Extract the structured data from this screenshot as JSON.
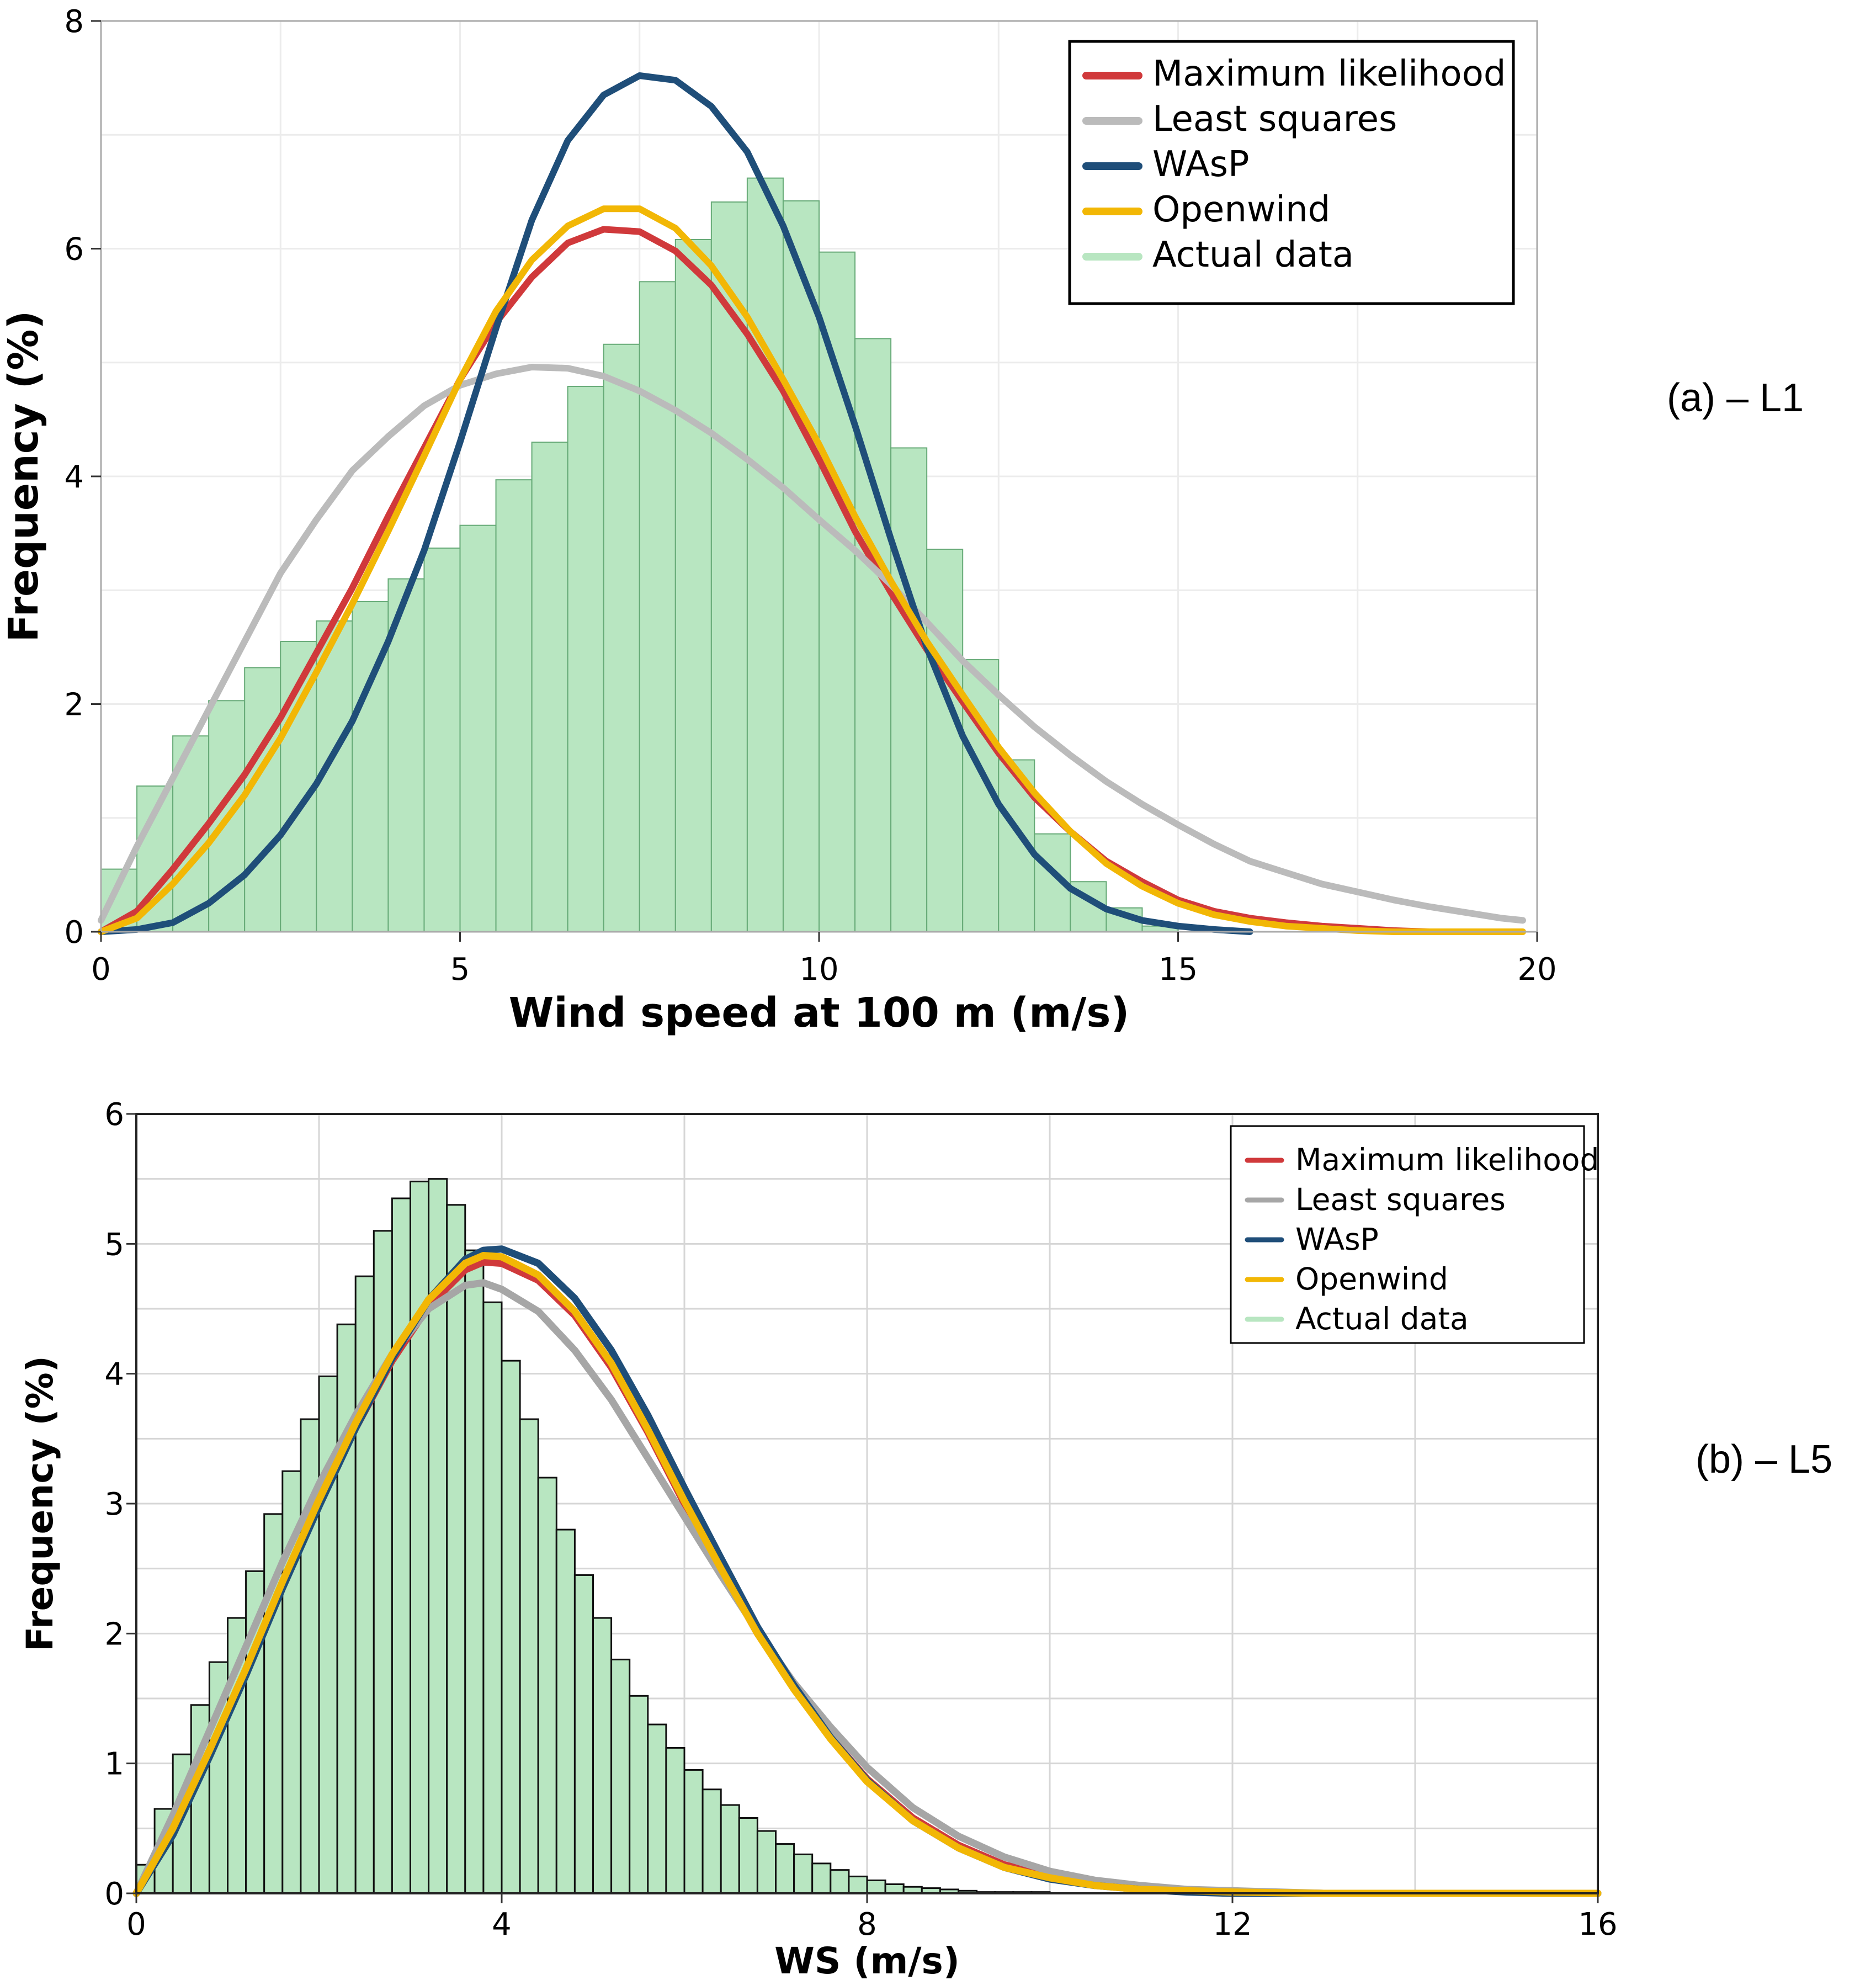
{
  "panels": [
    {
      "tag": "(a)  – L1",
      "chart_data": {
        "type": "bar",
        "xlabel": "Wind speed at 100 m (m/s)",
        "ylabel": "Frequency (%)",
        "xlim": [
          0,
          20
        ],
        "ylim": [
          0,
          8
        ],
        "xticks": [
          0,
          5,
          10,
          15,
          20
        ],
        "yticks": [
          0,
          2,
          4,
          6,
          8
        ],
        "grid": true,
        "legend_position": "top-right",
        "bin_width": 0.5,
        "actual_data": [
          0.55,
          1.28,
          1.72,
          2.03,
          2.32,
          2.55,
          2.73,
          2.9,
          3.1,
          3.37,
          3.57,
          3.97,
          4.3,
          4.79,
          5.16,
          5.71,
          6.08,
          6.41,
          6.62,
          6.42,
          5.97,
          5.21,
          4.25,
          3.36,
          2.39,
          1.51,
          0.86,
          0.44,
          0.21,
          0.05
        ],
        "series": [
          {
            "name": "Maximum likelihood",
            "color": "#d0393b",
            "x": [
              0,
              0.5,
              1,
              1.5,
              2,
              2.5,
              3,
              3.5,
              4,
              4.5,
              5,
              5.5,
              6,
              6.5,
              7,
              7.5,
              8,
              8.5,
              9,
              9.5,
              10,
              10.5,
              11,
              11.5,
              12,
              12.5,
              13,
              13.5,
              14,
              14.5,
              15,
              15.5,
              16,
              16.5,
              17,
              17.5,
              18,
              18.5
            ],
            "y": [
              0,
              0.18,
              0.55,
              0.95,
              1.38,
              1.88,
              2.45,
              3.02,
              3.65,
              4.25,
              4.85,
              5.35,
              5.75,
              6.05,
              6.17,
              6.15,
              5.98,
              5.68,
              5.25,
              4.75,
              4.15,
              3.52,
              2.98,
              2.48,
              2.02,
              1.57,
              1.18,
              0.88,
              0.62,
              0.44,
              0.28,
              0.18,
              0.12,
              0.08,
              0.05,
              0.03,
              0.01,
              0
            ]
          },
          {
            "name": "Least squares",
            "color": "#bbbbbb",
            "x": [
              0,
              0.5,
              1,
              1.5,
              2,
              2.5,
              3,
              3.5,
              4,
              4.5,
              5,
              5.5,
              6,
              6.5,
              7,
              7.5,
              8,
              8.5,
              9,
              9.5,
              10,
              10.5,
              11,
              11.5,
              12,
              12.5,
              13,
              13.5,
              14,
              14.5,
              15,
              15.5,
              16,
              16.5,
              17,
              17.5,
              18,
              18.5,
              19,
              19.5,
              19.8
            ],
            "y": [
              0.1,
              0.75,
              1.35,
              1.95,
              2.55,
              3.15,
              3.62,
              4.05,
              4.35,
              4.62,
              4.8,
              4.9,
              4.96,
              4.95,
              4.88,
              4.75,
              4.58,
              4.38,
              4.15,
              3.9,
              3.62,
              3.35,
              3.05,
              2.72,
              2.38,
              2.08,
              1.8,
              1.55,
              1.32,
              1.12,
              0.94,
              0.77,
              0.62,
              0.52,
              0.42,
              0.35,
              0.28,
              0.22,
              0.17,
              0.12,
              0.1
            ]
          },
          {
            "name": "WAsP",
            "color": "#1f4e79",
            "x": [
              0,
              0.5,
              1,
              1.5,
              2,
              2.5,
              3,
              3.5,
              4,
              4.5,
              5,
              5.5,
              6,
              6.5,
              7,
              7.5,
              8,
              8.5,
              9,
              9.5,
              10,
              10.5,
              11,
              11.5,
              12,
              12.5,
              13,
              13.5,
              14,
              14.5,
              15,
              15.5,
              16
            ],
            "y": [
              0,
              0.02,
              0.08,
              0.25,
              0.5,
              0.85,
              1.3,
              1.85,
              2.55,
              3.35,
              4.3,
              5.3,
              6.25,
              6.95,
              7.35,
              7.52,
              7.48,
              7.25,
              6.85,
              6.2,
              5.4,
              4.45,
              3.45,
              2.5,
              1.72,
              1.12,
              0.68,
              0.38,
              0.2,
              0.1,
              0.05,
              0.02,
              0
            ]
          },
          {
            "name": "Openwind",
            "color": "#f2b705",
            "x": [
              0,
              0.5,
              1,
              1.5,
              2,
              2.5,
              3,
              3.5,
              4,
              4.5,
              5,
              5.5,
              6,
              6.5,
              7,
              7.5,
              8,
              8.5,
              9,
              9.5,
              10,
              10.5,
              11,
              11.5,
              12,
              12.5,
              13,
              13.5,
              14,
              14.5,
              15,
              15.5,
              16,
              16.5,
              17,
              17.5,
              18,
              18.5,
              19,
              19.5,
              19.8
            ],
            "y": [
              0,
              0.12,
              0.42,
              0.78,
              1.2,
              1.7,
              2.28,
              2.88,
              3.52,
              4.18,
              4.85,
              5.45,
              5.9,
              6.2,
              6.35,
              6.35,
              6.18,
              5.85,
              5.4,
              4.85,
              4.28,
              3.65,
              3.08,
              2.55,
              2.08,
              1.62,
              1.22,
              0.88,
              0.6,
              0.4,
              0.25,
              0.15,
              0.09,
              0.05,
              0.03,
              0.01,
              0,
              0,
              0,
              0,
              0
            ]
          }
        ],
        "legend": [
          "Maximum likelihood",
          "Least squares",
          "WAsP",
          "Openwind",
          "Actual data"
        ],
        "bar_color": "#b8e6c1"
      }
    },
    {
      "tag": "(b)  – L5",
      "chart_data": {
        "type": "bar",
        "xlabel": "WS (m/s)",
        "ylabel": "Frequency (%)",
        "xlim": [
          0,
          16
        ],
        "ylim": [
          0,
          6
        ],
        "xticks": [
          0,
          4,
          8,
          12,
          16
        ],
        "yticks": [
          0,
          1,
          2,
          3,
          4,
          5,
          6
        ],
        "grid": true,
        "legend_position": "top-right",
        "bin_width": 0.2,
        "actual_data": [
          0.22,
          0.65,
          1.07,
          1.45,
          1.78,
          2.12,
          2.48,
          2.92,
          3.25,
          3.65,
          3.98,
          4.38,
          4.75,
          5.1,
          5.35,
          5.48,
          5.5,
          5.3,
          4.95,
          4.55,
          4.1,
          3.65,
          3.2,
          2.8,
          2.45,
          2.12,
          1.8,
          1.52,
          1.3,
          1.12,
          0.95,
          0.8,
          0.68,
          0.58,
          0.48,
          0.38,
          0.3,
          0.23,
          0.18,
          0.13,
          0.1,
          0.07,
          0.05,
          0.04,
          0.03,
          0.02,
          0.01,
          0.01,
          0.01,
          0.01
        ],
        "series": [
          {
            "name": "Maximum likelihood",
            "color": "#d0393b",
            "x": [
              0,
              0.4,
              0.8,
              1.2,
              1.6,
              2,
              2.4,
              2.8,
              3.2,
              3.6,
              3.8,
              4.0,
              4.4,
              4.8,
              5.2,
              5.6,
              6,
              6.4,
              6.8,
              7.2,
              7.6,
              8,
              8.5,
              9,
              9.5,
              10,
              10.5,
              11,
              11.5,
              12,
              13,
              14,
              15,
              16
            ],
            "y": [
              0,
              0.5,
              1.1,
              1.72,
              2.38,
              3.0,
              3.58,
              4.1,
              4.52,
              4.8,
              4.86,
              4.85,
              4.72,
              4.45,
              4.05,
              3.55,
              3.0,
              2.5,
              2.0,
              1.58,
              1.2,
              0.88,
              0.58,
              0.37,
              0.22,
              0.13,
              0.07,
              0.04,
              0.02,
              0.01,
              0,
              0,
              0,
              0
            ]
          },
          {
            "name": "Least squares",
            "color": "#a6a6a6",
            "x": [
              0,
              0.4,
              0.8,
              1.2,
              1.6,
              2,
              2.4,
              2.8,
              3.2,
              3.6,
              3.8,
              4.0,
              4.4,
              4.8,
              5.2,
              5.6,
              6,
              6.4,
              6.8,
              7.2,
              7.6,
              8,
              8.5,
              9,
              9.5,
              10,
              10.5,
              11,
              11.5,
              12,
              13,
              14,
              15,
              16
            ],
            "y": [
              0,
              0.6,
              1.25,
              1.9,
              2.55,
              3.15,
              3.68,
              4.15,
              4.5,
              4.68,
              4.7,
              4.65,
              4.48,
              4.18,
              3.8,
              3.35,
              2.9,
              2.45,
              2.02,
              1.62,
              1.28,
              0.97,
              0.66,
              0.44,
              0.28,
              0.17,
              0.1,
              0.06,
              0.03,
              0.02,
              0,
              0,
              0,
              0
            ]
          },
          {
            "name": "WAsP",
            "color": "#1f4e79",
            "x": [
              0,
              0.4,
              0.8,
              1.2,
              1.6,
              2,
              2.4,
              2.8,
              3.2,
              3.6,
              3.8,
              4.0,
              4.4,
              4.8,
              5.2,
              5.6,
              6,
              6.4,
              6.8,
              7.2,
              7.6,
              8,
              8.5,
              9,
              9.5,
              10,
              10.5,
              11,
              11.5,
              12,
              13,
              14,
              15,
              16
            ],
            "y": [
              0,
              0.45,
              1.05,
              1.68,
              2.35,
              2.98,
              3.58,
              4.12,
              4.57,
              4.88,
              4.95,
              4.96,
              4.85,
              4.58,
              4.18,
              3.68,
              3.12,
              2.58,
              2.05,
              1.6,
              1.2,
              0.87,
              0.56,
              0.35,
              0.2,
              0.11,
              0.06,
              0.03,
              0.01,
              0,
              0,
              0,
              0,
              0
            ]
          },
          {
            "name": "Openwind",
            "color": "#f2b705",
            "x": [
              0,
              0.4,
              0.8,
              1.2,
              1.6,
              2,
              2.4,
              2.8,
              3.2,
              3.6,
              3.8,
              4.0,
              4.4,
              4.8,
              5.2,
              5.6,
              6,
              6.4,
              6.8,
              7.2,
              7.6,
              8,
              8.5,
              9,
              9.5,
              10,
              10.5,
              11,
              11.5,
              12,
              13,
              14,
              15,
              16
            ],
            "y": [
              0,
              0.5,
              1.1,
              1.73,
              2.4,
              3.03,
              3.62,
              4.15,
              4.57,
              4.85,
              4.91,
              4.9,
              4.76,
              4.48,
              4.08,
              3.57,
              3.02,
              2.5,
              2.0,
              1.57,
              1.19,
              0.86,
              0.56,
              0.35,
              0.2,
              0.12,
              0.06,
              0.03,
              0.02,
              0.01,
              0,
              0,
              0,
              0
            ]
          }
        ],
        "legend": [
          "Maximum likelihood",
          "Least squares",
          "WAsP",
          "Openwind",
          "Actual data"
        ],
        "bar_color": "#b8e6c1"
      }
    }
  ]
}
